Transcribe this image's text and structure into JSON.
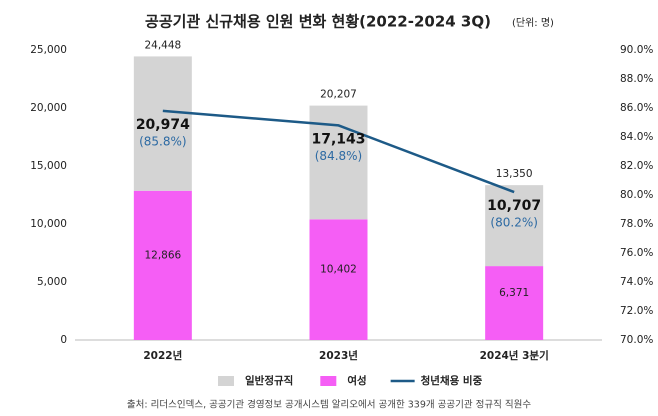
{
  "chart_data": {
    "type": "stacked_bar_line",
    "title": "공공기관 신규채용 인원 변화 현황(2022-2024 3Q)",
    "subtitle": "(단위: 명)",
    "categories": [
      "2022년",
      "2023년",
      "2024년 3분기"
    ],
    "series": [
      {
        "name": "여성",
        "color": "#f55ef5",
        "values": [
          12866,
          10402,
          6371
        ],
        "value_labels": [
          "12,866",
          "10,402",
          "6,371"
        ]
      },
      {
        "name": "일반정규직",
        "color": "#d4d4d4",
        "values": [
          11582,
          9805,
          6979
        ]
      },
      {
        "name": "청년채용 비중",
        "color": "#1d5a87",
        "axis": "y2",
        "values": [
          85.8,
          84.8,
          80.2
        ],
        "value_labels": [
          "(85.8%)",
          "(84.8%)",
          "(80.2%)"
        ]
      }
    ],
    "total_labels": [
      "24,448",
      "20,207",
      "13,350"
    ],
    "youth_labels": [
      "20,974",
      "17,143",
      "10,707"
    ],
    "ylim": [
      0,
      25000
    ],
    "yticks": [
      0,
      {
        "value": 5000,
        "label": "5,000"
      },
      {
        "value": 10000,
        "label": "10,000"
      },
      {
        "value": 15000,
        "label": "15,000"
      },
      {
        "value": 20000,
        "label": "20,000"
      },
      {
        "value": 25000,
        "label": "25,000"
      }
    ],
    "y2lim": [
      70,
      90
    ],
    "y2ticks": [
      {
        "value": 70,
        "label": "70.0%"
      },
      {
        "value": 72,
        "label": "72.0%"
      },
      {
        "value": 74,
        "label": "74.0%"
      },
      {
        "value": 76,
        "label": "76.0%"
      },
      {
        "value": 78,
        "label": "78.0%"
      },
      {
        "value": 80,
        "label": "80.0%"
      },
      {
        "value": 82,
        "label": "82.0%"
      },
      {
        "value": 84,
        "label": "84.0%"
      },
      {
        "value": 86,
        "label": "86.0%"
      },
      {
        "value": 88,
        "label": "88.0%"
      },
      {
        "value": 90,
        "label": "90.0%"
      }
    ],
    "grid": false,
    "legend": "bottom",
    "source": "출처: 리더스인덱스, 공공기관 경영정보 공개시스템 알리오에서 공개한 339개 공공기관 정규직 직원수"
  }
}
